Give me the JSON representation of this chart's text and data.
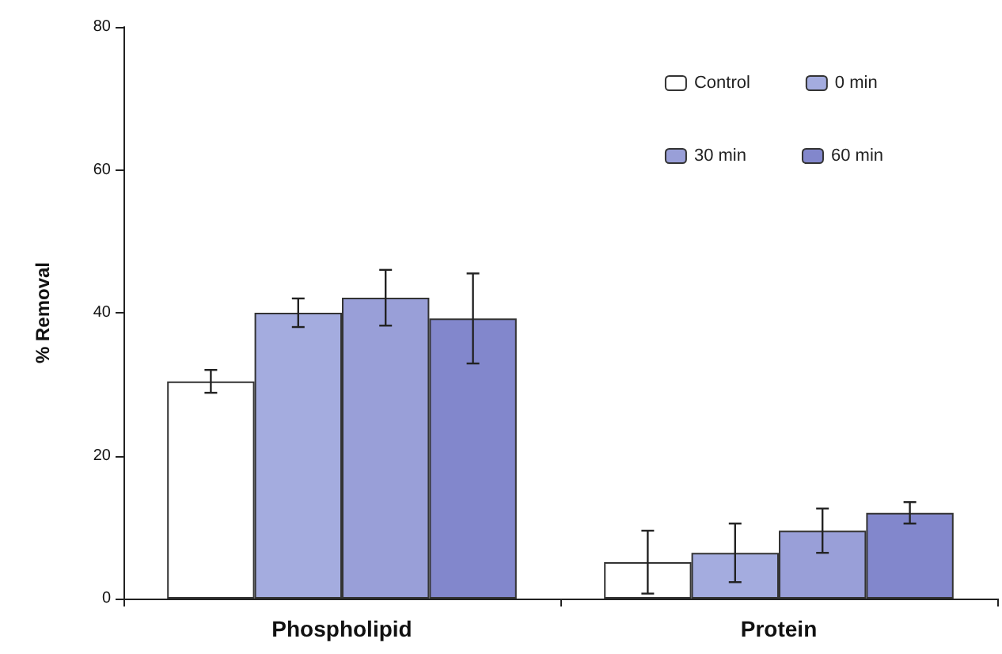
{
  "chart_data": {
    "type": "bar",
    "ylabel": "% Removal",
    "categories": [
      "Phospholipid",
      "Protein"
    ],
    "series": [
      {
        "name": "Control",
        "color": "#ffffff",
        "values": [
          30.4,
          5.1
        ],
        "errors": [
          1.6,
          4.4
        ]
      },
      {
        "name": "0 min",
        "color": "#a4acdf",
        "values": [
          40,
          6.4
        ],
        "errors": [
          2,
          4.1
        ]
      },
      {
        "name": "30 min",
        "color": "#999fd8",
        "values": [
          42.1,
          9.5
        ],
        "errors": [
          3.9,
          3.1
        ]
      },
      {
        "name": "60 min",
        "color": "#8287cc",
        "values": [
          39.2,
          12
        ],
        "errors": [
          6.3,
          1.5
        ]
      }
    ],
    "ylim": [
      0,
      80
    ],
    "yticks": [
      0,
      20,
      40,
      60,
      80
    ],
    "grid": false,
    "legend": "top right"
  }
}
